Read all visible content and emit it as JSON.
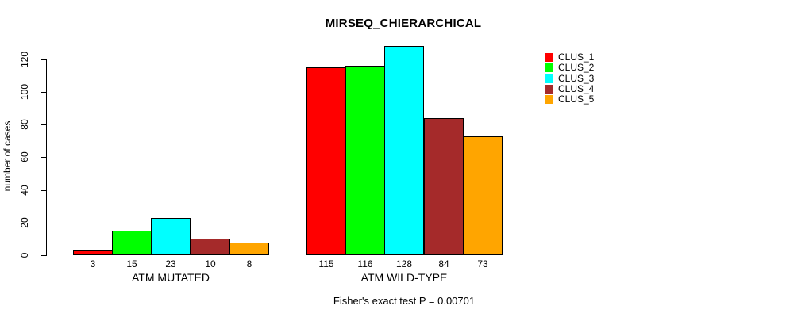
{
  "chart_data": {
    "type": "bar",
    "title": "MIRSEQ_CHIERARCHICAL",
    "ylabel": "number of cases",
    "xlabel": "",
    "caption": "Fisher's exact test P = 0.00701",
    "categories": [
      "ATM MUTATED",
      "ATM WILD-TYPE"
    ],
    "series": [
      {
        "name": "CLUS_1",
        "color": "#FF0000",
        "values": [
          3,
          115
        ]
      },
      {
        "name": "CLUS_2",
        "color": "#00FF00",
        "values": [
          15,
          116
        ]
      },
      {
        "name": "CLUS_3",
        "color": "#00FFFF",
        "values": [
          23,
          128
        ]
      },
      {
        "name": "CLUS_4",
        "color": "#A52A2A",
        "values": [
          10,
          84
        ]
      },
      {
        "name": "CLUS_5",
        "color": "#FFA500",
        "values": [
          8,
          73
        ]
      }
    ],
    "yticks": [
      0,
      20,
      40,
      60,
      80,
      100,
      120
    ],
    "ylim": [
      0,
      120
    ],
    "grid": false,
    "bar_value_labels_shown": true,
    "legend_position": "right",
    "bar_border_color": "#000000",
    "text_color": "#000000"
  }
}
